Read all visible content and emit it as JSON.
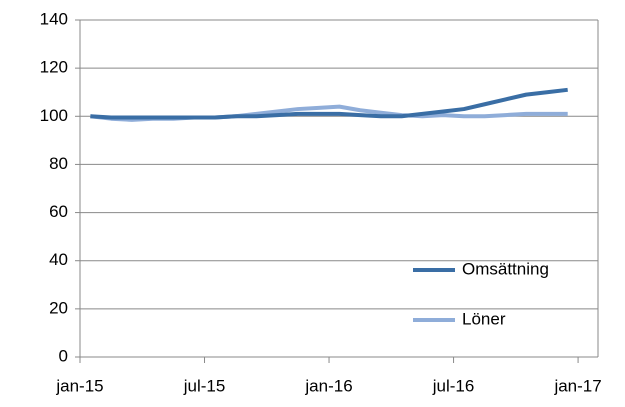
{
  "chart_data": {
    "type": "line",
    "x": [
      0.5,
      1.5,
      2.5,
      3.5,
      4.5,
      5.5,
      6.5,
      7.5,
      8.5,
      9.5,
      10.5,
      11.5,
      12.5,
      13.5,
      14.5,
      15.5,
      16.5,
      17.5,
      18.5,
      19.5,
      20.5,
      21.5,
      22.5,
      23.5
    ],
    "series": [
      {
        "name": "Omsättning",
        "color": "#3a6ea5",
        "values": [
          100,
          99.5,
          99.5,
          99.5,
          99.5,
          99.5,
          99.5,
          100,
          100,
          100.5,
          101,
          101,
          101,
          100.5,
          100,
          100,
          101,
          102,
          103,
          105,
          107,
          109,
          110,
          111
        ]
      },
      {
        "name": "Löner",
        "color": "#8fadd9",
        "values": [
          100,
          99,
          98.5,
          99,
          99,
          99.5,
          99.5,
          100,
          101,
          102,
          103,
          103.5,
          104,
          102.5,
          101.5,
          100.5,
          100,
          100.5,
          100,
          100,
          100.5,
          101,
          101,
          101
        ]
      }
    ],
    "xlim": [
      0,
      25
    ],
    "xticks": [
      {
        "value": 0,
        "label": "jan-15"
      },
      {
        "value": 6,
        "label": "jul-15"
      },
      {
        "value": 12,
        "label": "jan-16"
      },
      {
        "value": 18,
        "label": "jul-16"
      },
      {
        "value": 24,
        "label": "jan-17"
      }
    ],
    "ylim": [
      0,
      140
    ],
    "yticks": [
      0,
      20,
      40,
      60,
      80,
      100,
      120,
      140
    ],
    "grid": true,
    "legend": "lower-right"
  }
}
